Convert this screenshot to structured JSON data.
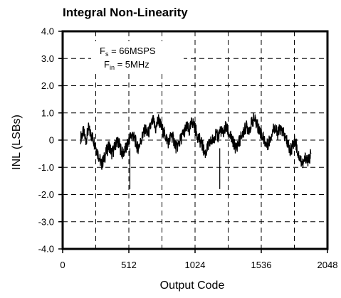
{
  "chart_data": {
    "type": "line",
    "title": "Integral Non-Linearity",
    "xlabel": "Output Code",
    "ylabel": "INL (LSBs)",
    "xlim": [
      0,
      2048
    ],
    "ylim": [
      -4,
      4
    ],
    "xticks": [
      "0",
      "512",
      "1024",
      "1536",
      "2048"
    ],
    "yticks": [
      "4.0",
      "3.0",
      "2.0",
      "1.0",
      "0",
      "-1.0",
      "-2.0",
      "-3.0",
      "-4.0"
    ],
    "grid": true,
    "annotation": {
      "line1_main": "F",
      "line1_sub": "s",
      "line1_rest": " = 66MSPS",
      "line2_main": "F",
      "line2_sub": "in",
      "line2_rest": " = 5MHz"
    },
    "series": [
      {
        "x": [
          140,
          160,
          180,
          200,
          220,
          240,
          260,
          280,
          300,
          320,
          340,
          360,
          380,
          400,
          420,
          440,
          460,
          480,
          500,
          520,
          540,
          560,
          580,
          600,
          620,
          640,
          660,
          680,
          700,
          720,
          740,
          760,
          780,
          800,
          820,
          840,
          860,
          880,
          900,
          920,
          940,
          960,
          980,
          1000,
          1020,
          1040,
          1060,
          1080,
          1100,
          1120,
          1140,
          1160,
          1180,
          1200,
          1220,
          1240,
          1260,
          1280,
          1300,
          1320,
          1340,
          1360,
          1380,
          1400,
          1420,
          1440,
          1460,
          1480,
          1500,
          1520,
          1540,
          1560,
          1580,
          1600,
          1620,
          1640,
          1660,
          1680,
          1700,
          1720,
          1740,
          1760,
          1780,
          1800,
          1820,
          1840,
          1860,
          1880,
          1900,
          1920
        ],
        "y": [
          0.1,
          0.3,
          0.0,
          0.4,
          0.2,
          0.0,
          -0.3,
          -0.6,
          -0.9,
          -0.7,
          -0.4,
          -0.2,
          -0.5,
          -0.3,
          0.0,
          -0.2,
          -0.5,
          -0.4,
          -0.2,
          0.1,
          0.2,
          0.0,
          -0.3,
          -0.1,
          0.2,
          0.4,
          0.2,
          0.5,
          0.7,
          0.4,
          0.8,
          0.5,
          0.3,
          0.1,
          -0.1,
          0.2,
          0.0,
          -0.3,
          -0.1,
          0.1,
          0.3,
          0.5,
          0.3,
          0.7,
          0.5,
          0.2,
          0.0,
          -0.2,
          -0.5,
          -0.3,
          -0.1,
          0.0,
          0.2,
          0.1,
          0.4,
          0.2,
          0.5,
          0.3,
          0.1,
          -0.1,
          -0.3,
          -0.1,
          0.1,
          0.3,
          0.5,
          0.4,
          0.6,
          0.8,
          0.6,
          0.4,
          0.2,
          0.0,
          -0.2,
          0.0,
          0.3,
          0.5,
          0.2,
          0.4,
          0.3,
          0.1,
          -0.1,
          -0.4,
          -0.2,
          0.0,
          -0.5,
          -0.7,
          -0.9,
          -0.6,
          -0.8,
          -0.5
        ]
      }
    ]
  }
}
